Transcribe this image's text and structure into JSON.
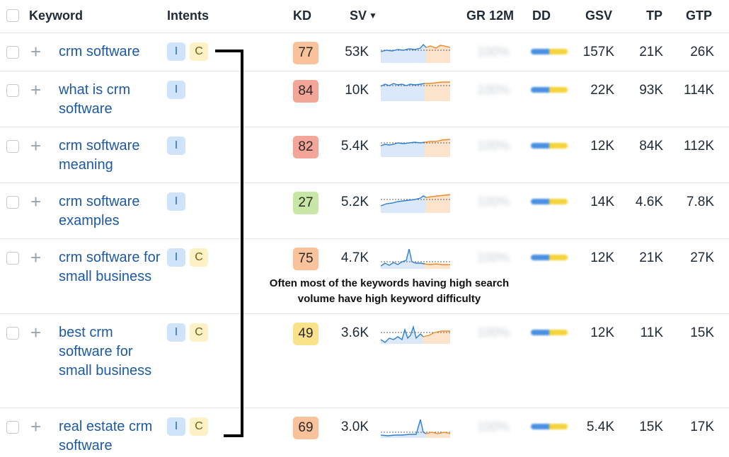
{
  "header": {
    "keyword": "Keyword",
    "intents": "Intents",
    "kd": "KD",
    "sv": "SV",
    "sv_sort_icon": "caret-down",
    "gr12m": "GR 12M",
    "dd": "DD",
    "gsv": "GSV",
    "tp": "TP",
    "gtp": "GTP"
  },
  "rows": [
    {
      "keyword": "crm software",
      "intents": [
        "I",
        "C"
      ],
      "kd": "77",
      "kd_color": "#f9c29a",
      "sv": "53K",
      "gr": "100%",
      "gsv": "157K",
      "tp": "21K",
      "gtp": "26K"
    },
    {
      "keyword": "what is crm software",
      "intents": [
        "I"
      ],
      "kd": "84",
      "kd_color": "#f3a597",
      "sv": "10K",
      "gr": "100%",
      "gsv": "22K",
      "tp": "93K",
      "gtp": "114K"
    },
    {
      "keyword": "crm software meaning",
      "intents": [
        "I"
      ],
      "kd": "82",
      "kd_color": "#f3a597",
      "sv": "5.4K",
      "gr": "100%",
      "gsv": "12K",
      "tp": "84K",
      "gtp": "112K"
    },
    {
      "keyword": "crm software examples",
      "intents": [
        "I"
      ],
      "kd": "27",
      "kd_color": "#c8e6a6",
      "sv": "5.2K",
      "gr": "100%",
      "gsv": "14K",
      "tp": "4.6K",
      "gtp": "7.8K"
    },
    {
      "keyword": "crm software for small business",
      "intents": [
        "I",
        "C"
      ],
      "kd": "75",
      "kd_color": "#f9c29a",
      "sv": "4.7K",
      "gr": "100%",
      "gsv": "12K",
      "tp": "21K",
      "gtp": "27K"
    },
    {
      "keyword": "best crm software for small business",
      "intents": [
        "I",
        "C"
      ],
      "kd": "49",
      "kd_color": "#fbe28a",
      "sv": "3.6K",
      "gr": "100%",
      "gsv": "12K",
      "tp": "11K",
      "gtp": "15K"
    },
    {
      "keyword": "real estate crm software",
      "intents": [
        "I",
        "C"
      ],
      "kd": "69",
      "kd_color": "#f9c29a",
      "sv": "3.0K",
      "gr": "100%",
      "gsv": "5.4K",
      "tp": "15K",
      "gtp": "17K"
    }
  ],
  "annotation": {
    "line1": "Often most of the keywords having high search",
    "line2": "volume have high keyword difficulty"
  },
  "colors": {
    "link": "#1d5aa6",
    "spark_blue": "#2f7fd0",
    "spark_orange": "#f08a24",
    "dd_blue": "#4a90e2",
    "dd_yellow": "#f5d33c"
  }
}
